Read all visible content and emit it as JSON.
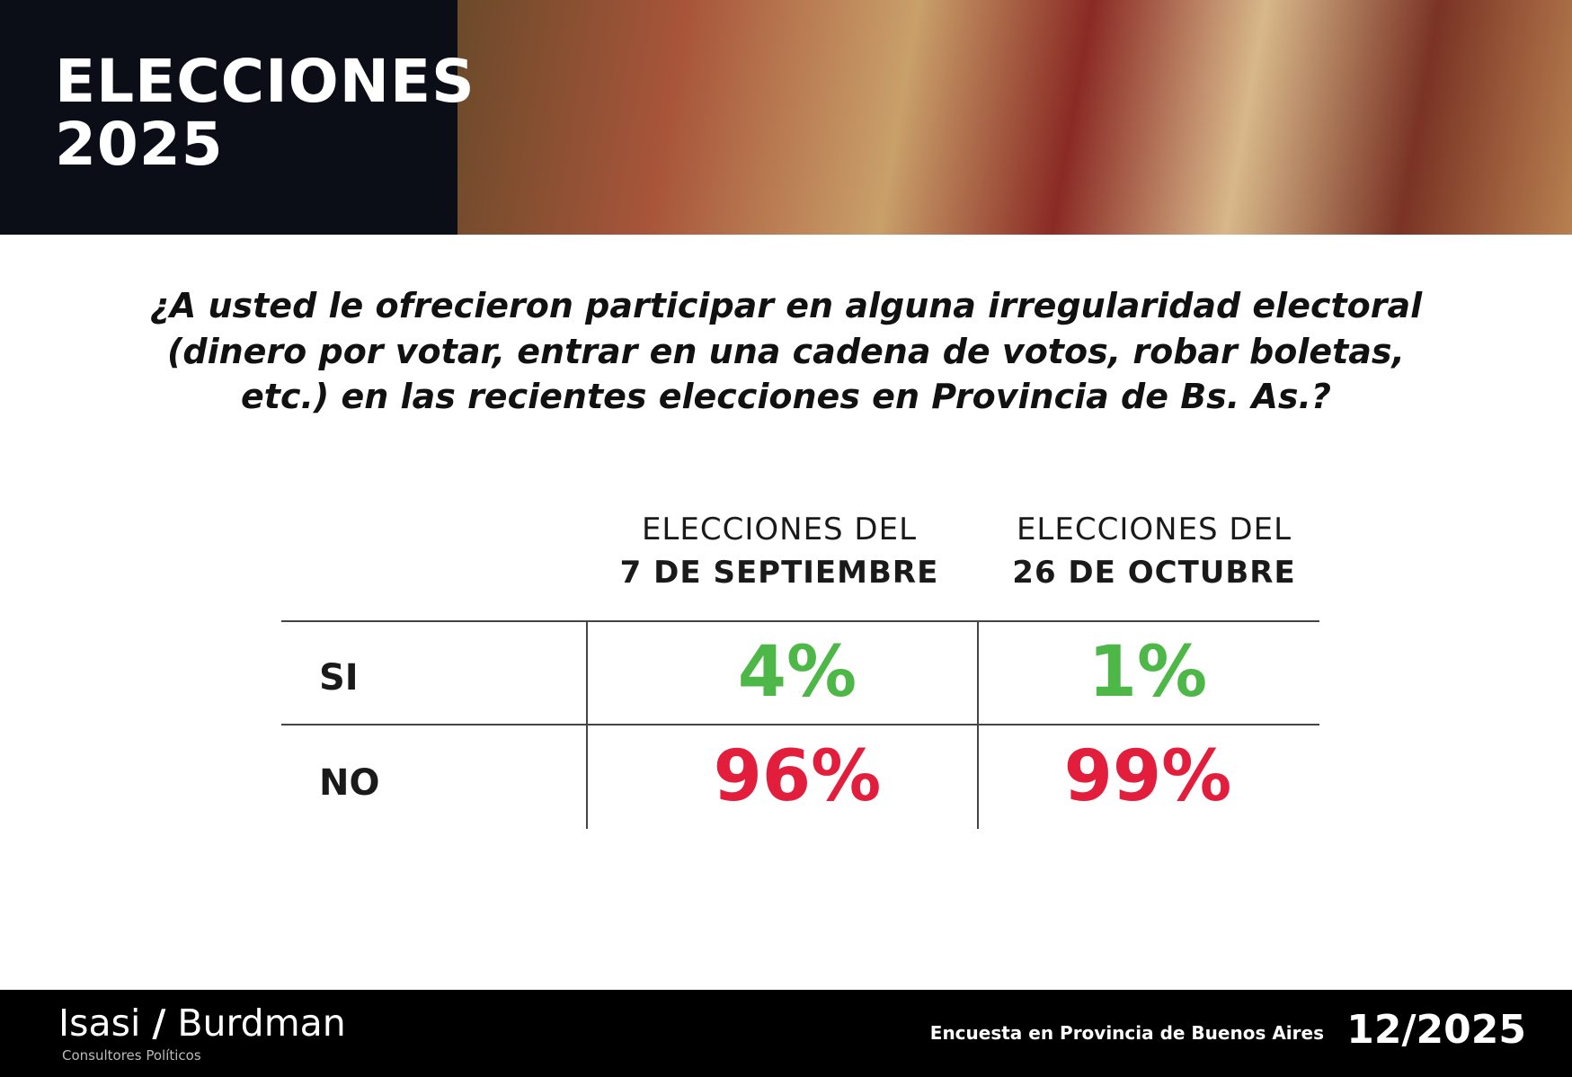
{
  "header": {
    "title": [
      "ELECCIONES",
      "2025"
    ]
  },
  "question": [
    "¿A usted le ofrecieron participar en alguna irregularidad electoral",
    "(dinero por votar, entrar en una cadena de votos, robar boletas,",
    "etc.) en las recientes elecciones en Provincia de Bs. As.?"
  ],
  "table": {
    "columns": [
      [
        "ELECCIONES DEL",
        "7 DE SEPTIEMBRE"
      ],
      [
        "ELECCIONES DEL",
        "26 DE OCTUBRE"
      ]
    ],
    "rows": [
      [
        "SI",
        "4%",
        "1%"
      ],
      [
        "NO",
        "96%",
        "99%"
      ]
    ]
  },
  "footer": {
    "brand": [
      "Isasi",
      "/",
      "Burdman"
    ],
    "brand_subtitle": "Consultores Políticos",
    "survey": "Encuesta en Provincia de Buenos Aires",
    "date": "12/2025"
  }
}
